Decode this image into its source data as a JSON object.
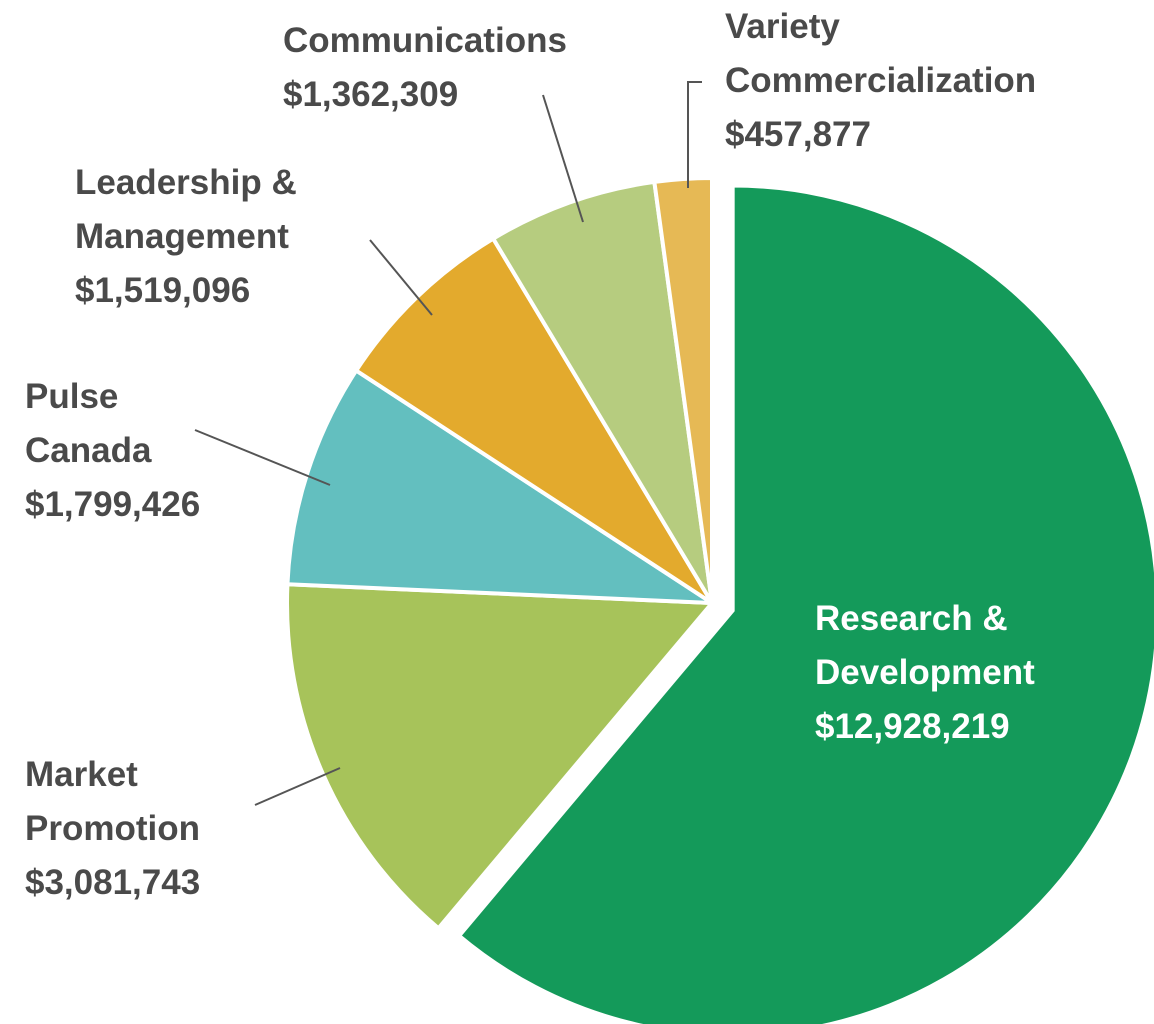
{
  "chart_data": {
    "type": "pie",
    "categories": [
      "Research & Development",
      "Market Promotion",
      "Pulse Canada",
      "Leadership & Management",
      "Communications",
      "Variety Commercialization"
    ],
    "values": [
      12928219,
      3081743,
      1799426,
      1519096,
      1362309,
      457877
    ],
    "value_labels": [
      "$12,928,219",
      "$3,081,743",
      "$1,799,426",
      "$1,519,096",
      "$1,362,309",
      "$457,877"
    ],
    "colors": [
      "#149a5a",
      "#a7c35a",
      "#63bfbf",
      "#e3aa2d",
      "#b6cc7f",
      "#e6b955"
    ],
    "exploded": [
      0
    ]
  }
}
